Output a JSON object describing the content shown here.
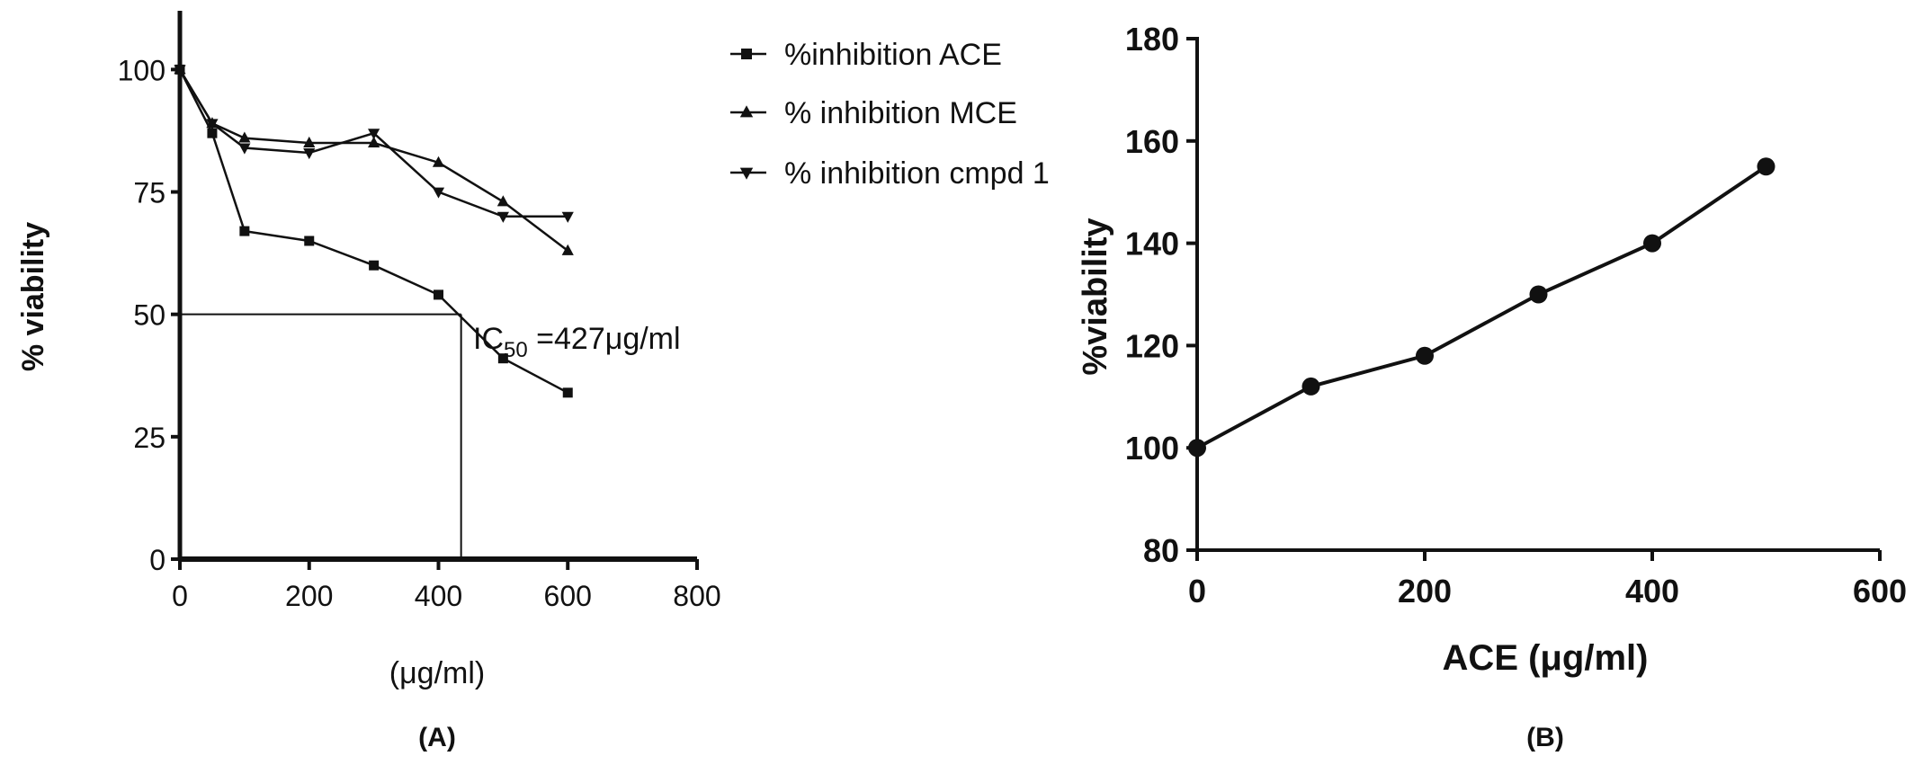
{
  "chart_data": [
    {
      "panel_label": "(A)",
      "type": "line",
      "xlabel": "(μg/ml)",
      "ylabel": "% viability",
      "xlim": [
        0,
        800
      ],
      "ylim": [
        0,
        112
      ],
      "x_ticks": [
        "0",
        "200",
        "400",
        "600",
        "800"
      ],
      "y_ticks": [
        "0",
        "25",
        "50",
        "75",
        "100"
      ],
      "legend_position": "top-right-outside",
      "series": [
        {
          "name": "%inhibition ACE",
          "marker": "square",
          "x": [
            0,
            50,
            100,
            200,
            300,
            400,
            500,
            600
          ],
          "y": [
            100,
            87,
            67,
            65,
            60,
            54,
            41,
            34
          ]
        },
        {
          "name": "% inhibition MCE",
          "marker": "triangle-up",
          "x": [
            0,
            50,
            100,
            200,
            300,
            400,
            500,
            600
          ],
          "y": [
            100,
            89,
            86,
            85,
            85,
            81,
            73,
            63
          ]
        },
        {
          "name": "% inhibition cmpd 1",
          "marker": "triangle-down",
          "x": [
            0,
            50,
            100,
            200,
            300,
            400,
            500,
            600
          ],
          "y": [
            100,
            89,
            84,
            83,
            87,
            75,
            70,
            70
          ]
        }
      ],
      "annotation": {
        "text_main": "IC",
        "text_sub": "50",
        "text_rest": " =427μg/ml",
        "ref_y": 50,
        "ref_x": 435
      }
    },
    {
      "panel_label": "(B)",
      "type": "line",
      "xlabel": "ACE (μg/ml)",
      "ylabel": "%viability",
      "xlim": [
        0,
        600
      ],
      "ylim": [
        80,
        180
      ],
      "x_ticks": [
        "0",
        "200",
        "400",
        "600"
      ],
      "y_ticks": [
        "80",
        "100",
        "120",
        "140",
        "160",
        "180"
      ],
      "series": [
        {
          "marker": "circle",
          "x": [
            0,
            100,
            200,
            300,
            400,
            500
          ],
          "y": [
            100,
            112,
            118,
            130,
            140,
            155
          ]
        }
      ]
    }
  ]
}
